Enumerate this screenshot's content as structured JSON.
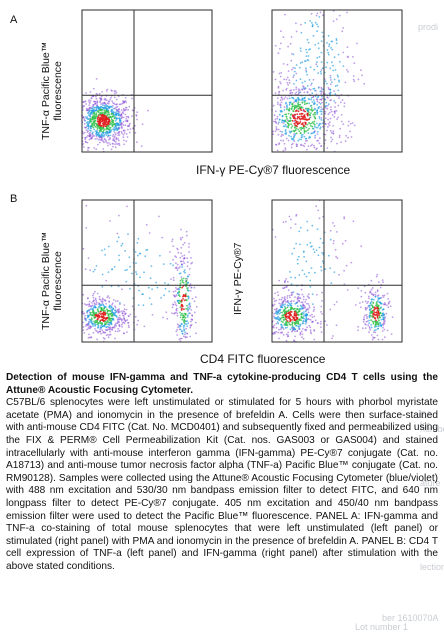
{
  "figure": {
    "panel_a_letter": "A",
    "panel_b_letter": "B",
    "panel_a_ylabel_line1": "TNF-α Pacific Blue™",
    "panel_a_ylabel_line2": "fluorescence",
    "panel_a_xlabel": "IFN-γ PE-Cy®7 fluorescence",
    "panel_b_left_ylabel_line1": "TNF-α Pacific Blue™",
    "panel_b_left_ylabel_line2": "fluorescence",
    "panel_b_right_ylabel": "IFN-γ PE-Cy®7",
    "panel_b_xlabel": "CD4 FITC fluorescence"
  },
  "caption": {
    "title": "Detection of mouse IFN-gamma and TNF-a cytokine-producing CD4 T cells using the Attune® Acoustic Focusing Cytometer.",
    "body": "C57BL/6 splenocytes were left unstimulated or stimulated for 5 hours with phorbol myristate acetate (PMA) and ionomycin in the presence of brefeldin A. Cells were then surface-stained with anti-mouse CD4 FITC (Cat. No. MCD0401) and subsequently fixed and permeabilized using the FIX & PERM® Cell Permeabilization Kit (Cat. nos. GAS003 or GAS004) and stained intracellularly with anti-mouse interferon gamma (IFN-gamma) PE-Cy®7 conjugate (Cat. no. A18713) and anti-mouse tumor necrosis factor alpha (TNF-a) Pacific Blue™ conjugate (Cat. no. RM90128). Samples were collected using the Attune® Acoustic Focusing Cytometer (blue/violet) with 488 nm excitation and 530/30 nm bandpass emission filter to detect FITC, and 640 nm longpass filter to detect PE-Cy®7 conjugate. 405 nm excitation and 450/40 nm bandpass emission filter were used to detect the Pacific Blue™ fluorescence. PANEL A: IFN-gamma and TNF-a co-staining of total mouse splenocytes that were left unstimulated (left panel) or stimulated (right panel) with PMA and ionomycin in the presence of brefeldin A. PANEL B: CD4 T cell expression of TNF-a (left panel) and IFN-gamma (right panel) after stimulation with the above stated conditions."
  },
  "watermarks": [
    "prodi",
    "ES lor",
    "number",
    "ature",
    "lection",
    "ber 1610070A",
    "Lot number 1"
  ],
  "colors": {
    "axis": "#2b2b2b",
    "density_low": "#8b4fd6",
    "density_mid": "#1f9be0",
    "density_high": "#2fc04a",
    "density_peak": "#e01e1e"
  },
  "chart_data": [
    {
      "type": "scatter",
      "panel": "A-left",
      "xlabel": "IFN-γ PE-Cy®7 fluorescence",
      "ylabel": "TNF-α Pacific Blue™ fluorescence",
      "quadrant_gate": true,
      "populations": [
        {
          "center": [
            0.16,
            0.22
          ],
          "spread": [
            0.11,
            0.09
          ],
          "weight": 1.0,
          "peak": true
        }
      ]
    },
    {
      "type": "scatter",
      "panel": "A-right",
      "xlabel": "IFN-γ PE-Cy®7 fluorescence",
      "ylabel": "TNF-α Pacific Blue™ fluorescence",
      "quadrant_gate": true,
      "populations": [
        {
          "center": [
            0.22,
            0.24
          ],
          "spread": [
            0.14,
            0.13
          ],
          "weight": 0.72,
          "peak": true
        },
        {
          "center": [
            0.35,
            0.6
          ],
          "spread": [
            0.16,
            0.28
          ],
          "weight": 0.28,
          "peak": false
        }
      ]
    },
    {
      "type": "scatter",
      "panel": "B-left",
      "xlabel": "CD4 FITC fluorescence",
      "ylabel": "TNF-α Pacific Blue™ fluorescence",
      "quadrant_gate": true,
      "populations": [
        {
          "center": [
            0.15,
            0.18
          ],
          "spread": [
            0.1,
            0.07
          ],
          "weight": 0.55,
          "peak": true
        },
        {
          "center": [
            0.78,
            0.3
          ],
          "spread": [
            0.04,
            0.2
          ],
          "weight": 0.3,
          "peak": true
        },
        {
          "center": [
            0.4,
            0.5
          ],
          "spread": [
            0.25,
            0.22
          ],
          "weight": 0.15,
          "peak": false
        }
      ]
    },
    {
      "type": "scatter",
      "panel": "B-right",
      "xlabel": "CD4 FITC fluorescence",
      "ylabel": "IFN-γ PE-Cy®7",
      "quadrant_gate": true,
      "populations": [
        {
          "center": [
            0.15,
            0.18
          ],
          "spread": [
            0.1,
            0.08
          ],
          "weight": 0.55,
          "peak": true
        },
        {
          "center": [
            0.8,
            0.2
          ],
          "spread": [
            0.05,
            0.1
          ],
          "weight": 0.3,
          "peak": true
        },
        {
          "center": [
            0.3,
            0.55
          ],
          "spread": [
            0.15,
            0.25
          ],
          "weight": 0.15,
          "peak": false
        }
      ]
    }
  ]
}
